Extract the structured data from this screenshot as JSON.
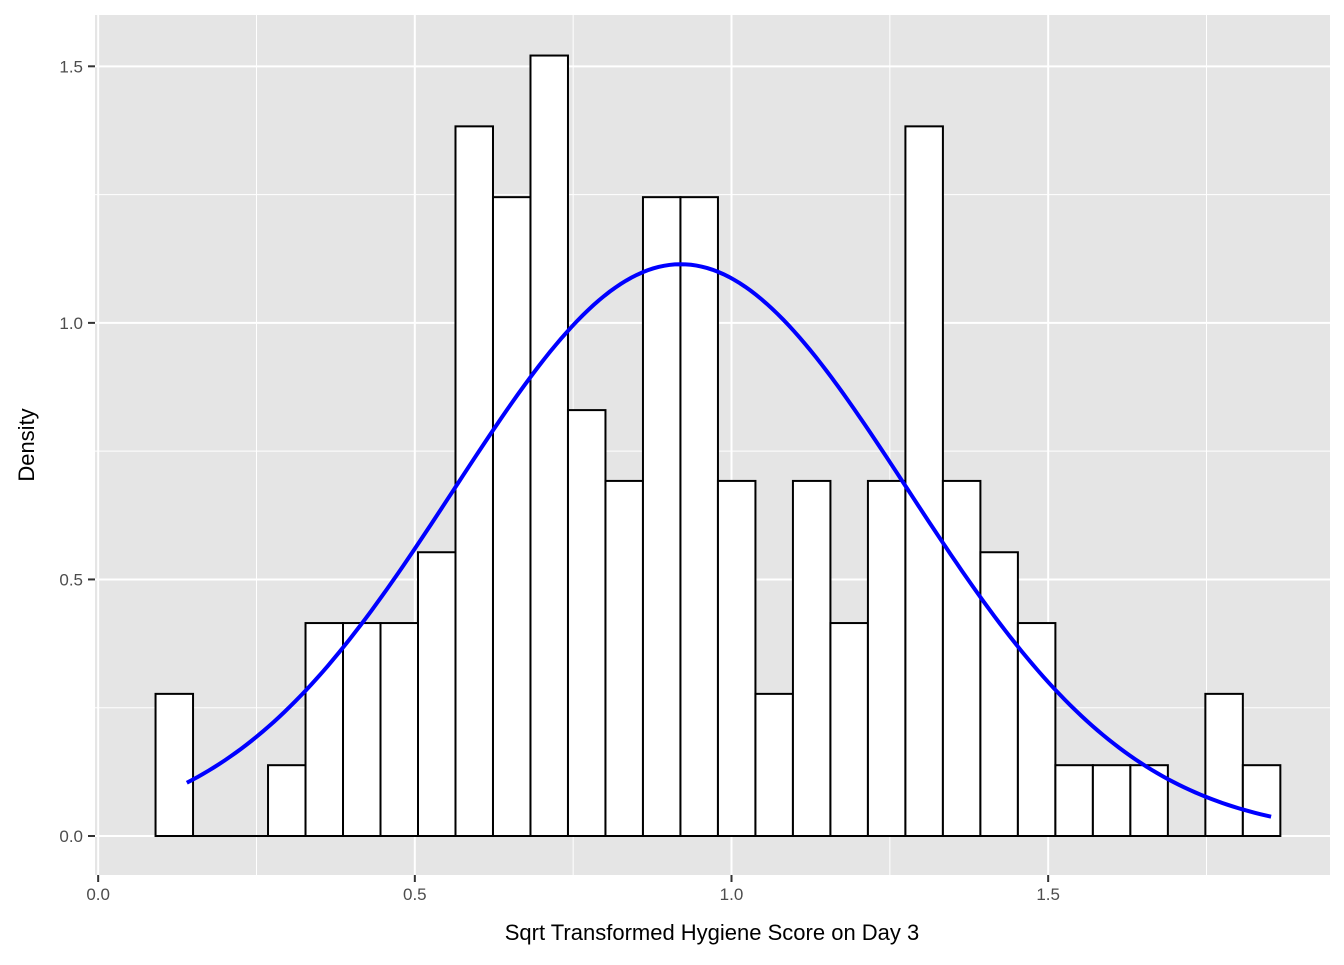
{
  "chart_data": {
    "type": "bar",
    "subtype": "histogram with normal density curve",
    "title": "",
    "xlabel": "Sqrt Transformed Hygiene Score on Day 3",
    "ylabel": "Density",
    "xlim": [
      -0.005,
      1.945
    ],
    "ylim": [
      -0.076,
      1.6
    ],
    "grid": true,
    "legend": "none",
    "x_ticks": [
      {
        "value": 0,
        "label": "0.0"
      },
      {
        "value": 0.5,
        "label": "0.5"
      },
      {
        "value": 1.0,
        "label": "1.0"
      },
      {
        "value": 1.5,
        "label": "1.5"
      }
    ],
    "y_ticks": [
      {
        "value": 0,
        "label": "0.0"
      },
      {
        "value": 0.5,
        "label": "0.5"
      },
      {
        "value": 1.0,
        "label": "1.0"
      },
      {
        "value": 1.5,
        "label": "1.5"
      }
    ],
    "bin_width": 0.0592,
    "bins": [
      {
        "x0": 0.0906,
        "density": 0.277
      },
      {
        "x0": 0.1498,
        "density": 0.0
      },
      {
        "x0": 0.209,
        "density": 0.0
      },
      {
        "x0": 0.2682,
        "density": 0.138
      },
      {
        "x0": 0.3274,
        "density": 0.415
      },
      {
        "x0": 0.3866,
        "density": 0.415
      },
      {
        "x0": 0.4458,
        "density": 0.415
      },
      {
        "x0": 0.505,
        "density": 0.553
      },
      {
        "x0": 0.5642,
        "density": 1.383
      },
      {
        "x0": 0.6234,
        "density": 1.245
      },
      {
        "x0": 0.6826,
        "density": 1.521
      },
      {
        "x0": 0.7418,
        "density": 0.83
      },
      {
        "x0": 0.801,
        "density": 0.692
      },
      {
        "x0": 0.8602,
        "density": 1.245
      },
      {
        "x0": 0.9194,
        "density": 1.245
      },
      {
        "x0": 0.9786,
        "density": 0.692
      },
      {
        "x0": 1.0378,
        "density": 0.277
      },
      {
        "x0": 1.097,
        "density": 0.692
      },
      {
        "x0": 1.1562,
        "density": 0.415
      },
      {
        "x0": 1.2154,
        "density": 0.692
      },
      {
        "x0": 1.2746,
        "density": 1.383
      },
      {
        "x0": 1.3338,
        "density": 0.692
      },
      {
        "x0": 1.393,
        "density": 0.553
      },
      {
        "x0": 1.4522,
        "density": 0.415
      },
      {
        "x0": 1.5114,
        "density": 0.138
      },
      {
        "x0": 1.5706,
        "density": 0.138
      },
      {
        "x0": 1.6298,
        "density": 0.138
      },
      {
        "x0": 1.689,
        "density": 0.0
      },
      {
        "x0": 1.7482,
        "density": 0.277
      },
      {
        "x0": 1.8074,
        "density": 0.138
      }
    ],
    "normal_curve": {
      "mean": 0.92,
      "sd": 0.358,
      "x_range": [
        0.14,
        1.852
      ],
      "color": "#0000ff"
    },
    "colors": {
      "panel_background": "#e5e5e5",
      "grid": "#ffffff",
      "bar_fill": "#ffffff",
      "bar_outline": "#000000",
      "curve": "#0000ff"
    }
  }
}
